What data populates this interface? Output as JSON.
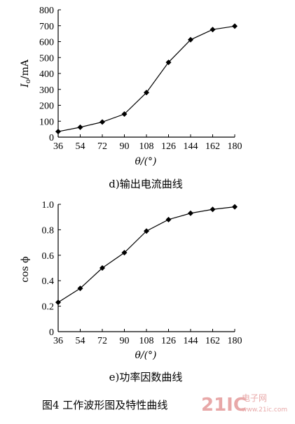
{
  "chart_data": [
    {
      "type": "line",
      "title": "d)输出电流曲线",
      "ylabel": "I",
      "ylabel_sub": "o",
      "ylabel_unit": "/mA",
      "xlabel": "θ/(°)",
      "x": [
        36,
        54,
        72,
        90,
        108,
        126,
        144,
        162,
        180
      ],
      "series": [
        {
          "values": [
            35,
            62,
            95,
            145,
            280,
            470,
            612,
            676,
            697
          ]
        }
      ],
      "xlim": [
        36,
        180
      ],
      "ylim": [
        0,
        800
      ],
      "yticks": [
        "0",
        "100",
        "200",
        "300",
        "400",
        "500",
        "600",
        "700",
        "800"
      ],
      "xticks": [
        "36",
        "54",
        "72",
        "90",
        "108",
        "126",
        "144",
        "162",
        "180"
      ],
      "grid": false,
      "marker": "diamond"
    },
    {
      "type": "line",
      "title": "e)功率因数曲线",
      "ylabel": "cos ϕ",
      "xlabel": "θ/(°)",
      "x": [
        36,
        54,
        72,
        90,
        108,
        126,
        144,
        162,
        180
      ],
      "series": [
        {
          "values": [
            0.23,
            0.34,
            0.5,
            0.62,
            0.79,
            0.88,
            0.93,
            0.96,
            0.98
          ]
        }
      ],
      "xlim": [
        36,
        180
      ],
      "ylim": [
        0,
        1.0
      ],
      "yticks": [
        "0",
        "0.2",
        "0.4",
        "0.6",
        "0.8",
        "1.0"
      ],
      "xticks": [
        "36",
        "54",
        "72",
        "90",
        "108",
        "126",
        "144",
        "162",
        "180"
      ],
      "grid": false,
      "marker": "diamond"
    }
  ],
  "figure_caption": "图4  工作波形图及特性曲线",
  "watermark": {
    "logo": "21IC",
    "site": "电子网",
    "url": "www.21ic.com"
  }
}
